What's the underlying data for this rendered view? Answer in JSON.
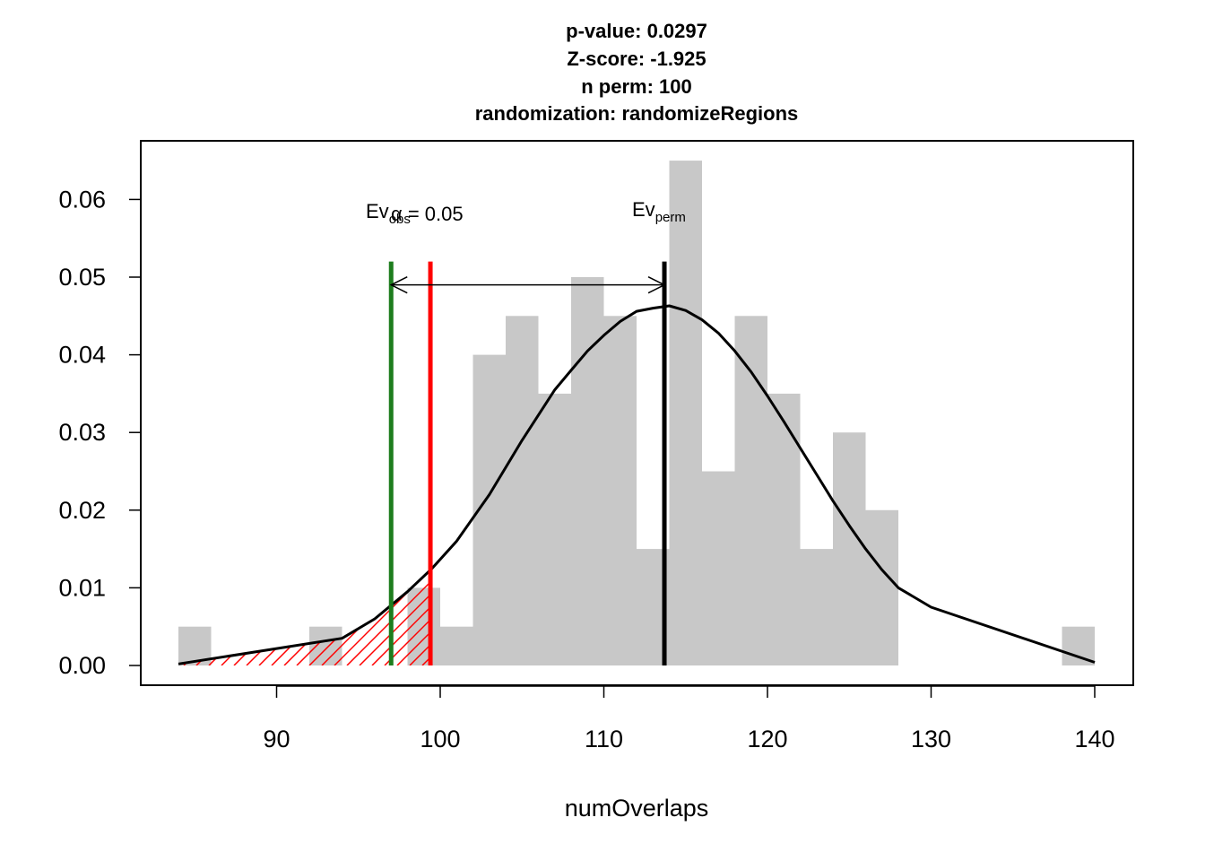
{
  "chart_data": {
    "type": "bar",
    "title_lines": [
      "p-value:  0.0297",
      "Z-score:  -1.925",
      "n perm:  100",
      "randomization:  randomizeRegions"
    ],
    "xlabel": "numOverlaps",
    "ylabel": "",
    "xlim": [
      84,
      140
    ],
    "ylim": [
      0,
      0.065
    ],
    "x_ticks": [
      90,
      100,
      110,
      120,
      130,
      140
    ],
    "y_ticks": [
      0.0,
      0.01,
      0.02,
      0.03,
      0.04,
      0.05,
      0.06
    ],
    "y_tick_labels": [
      "0.00",
      "0.01",
      "0.02",
      "0.03",
      "0.04",
      "0.05",
      "0.06"
    ],
    "histogram": {
      "bin_width": 2,
      "bins": [
        {
          "x0": 84,
          "density": 0.005
        },
        {
          "x0": 86,
          "density": 0.0
        },
        {
          "x0": 88,
          "density": 0.0
        },
        {
          "x0": 90,
          "density": 0.0
        },
        {
          "x0": 92,
          "density": 0.005
        },
        {
          "x0": 94,
          "density": 0.0
        },
        {
          "x0": 96,
          "density": 0.0
        },
        {
          "x0": 98,
          "density": 0.01
        },
        {
          "x0": 100,
          "density": 0.005
        },
        {
          "x0": 102,
          "density": 0.04
        },
        {
          "x0": 104,
          "density": 0.045
        },
        {
          "x0": 106,
          "density": 0.035
        },
        {
          "x0": 108,
          "density": 0.05
        },
        {
          "x0": 110,
          "density": 0.045
        },
        {
          "x0": 112,
          "density": 0.015
        },
        {
          "x0": 114,
          "density": 0.065
        },
        {
          "x0": 116,
          "density": 0.025
        },
        {
          "x0": 118,
          "density": 0.045
        },
        {
          "x0": 120,
          "density": 0.035
        },
        {
          "x0": 122,
          "density": 0.015
        },
        {
          "x0": 124,
          "density": 0.03
        },
        {
          "x0": 126,
          "density": 0.02
        },
        {
          "x0": 128,
          "density": 0.0
        },
        {
          "x0": 130,
          "density": 0.0
        },
        {
          "x0": 132,
          "density": 0.0
        },
        {
          "x0": 134,
          "density": 0.0
        },
        {
          "x0": 136,
          "density": 0.0
        },
        {
          "x0": 138,
          "density": 0.005
        }
      ]
    },
    "normal_curve": {
      "x": [
        84,
        94,
        96,
        98,
        99.5,
        101,
        103,
        105,
        107,
        108,
        109,
        110,
        111,
        112,
        113,
        114,
        115,
        116,
        117,
        118,
        119,
        120,
        121,
        122,
        123,
        124,
        125,
        126,
        127,
        128,
        130,
        140
      ],
      "y": [
        0.0002,
        0.0035,
        0.006,
        0.0095,
        0.0125,
        0.016,
        0.022,
        0.029,
        0.0355,
        0.038,
        0.0405,
        0.0425,
        0.0443,
        0.0456,
        0.046,
        0.0463,
        0.0457,
        0.0445,
        0.0428,
        0.0405,
        0.0378,
        0.0347,
        0.0314,
        0.028,
        0.0246,
        0.0212,
        0.018,
        0.015,
        0.0123,
        0.01,
        0.0075,
        0.0004
      ]
    },
    "lines": {
      "ev_obs": {
        "x": 97,
        "color": "#1e7d1e"
      },
      "alpha_threshold": {
        "x": 99.4,
        "color": "#ff0000"
      },
      "ev_perm": {
        "x": 113.7,
        "color": "#000000"
      }
    },
    "lines_top": 0.052,
    "arrow_y": 0.049,
    "hatch_range": [
      84,
      99.4
    ],
    "annotations": {
      "ev_obs_main": "Ev",
      "ev_obs_sub": "obs",
      "alpha_label": "α = 0.05",
      "ev_perm_main": "Ev",
      "ev_perm_sub": "perm",
      "label_y": 0.058
    },
    "colors": {
      "bars": "#c8c8c8",
      "curve": "#000000",
      "hatch": "#ff0000"
    },
    "grid": false
  }
}
